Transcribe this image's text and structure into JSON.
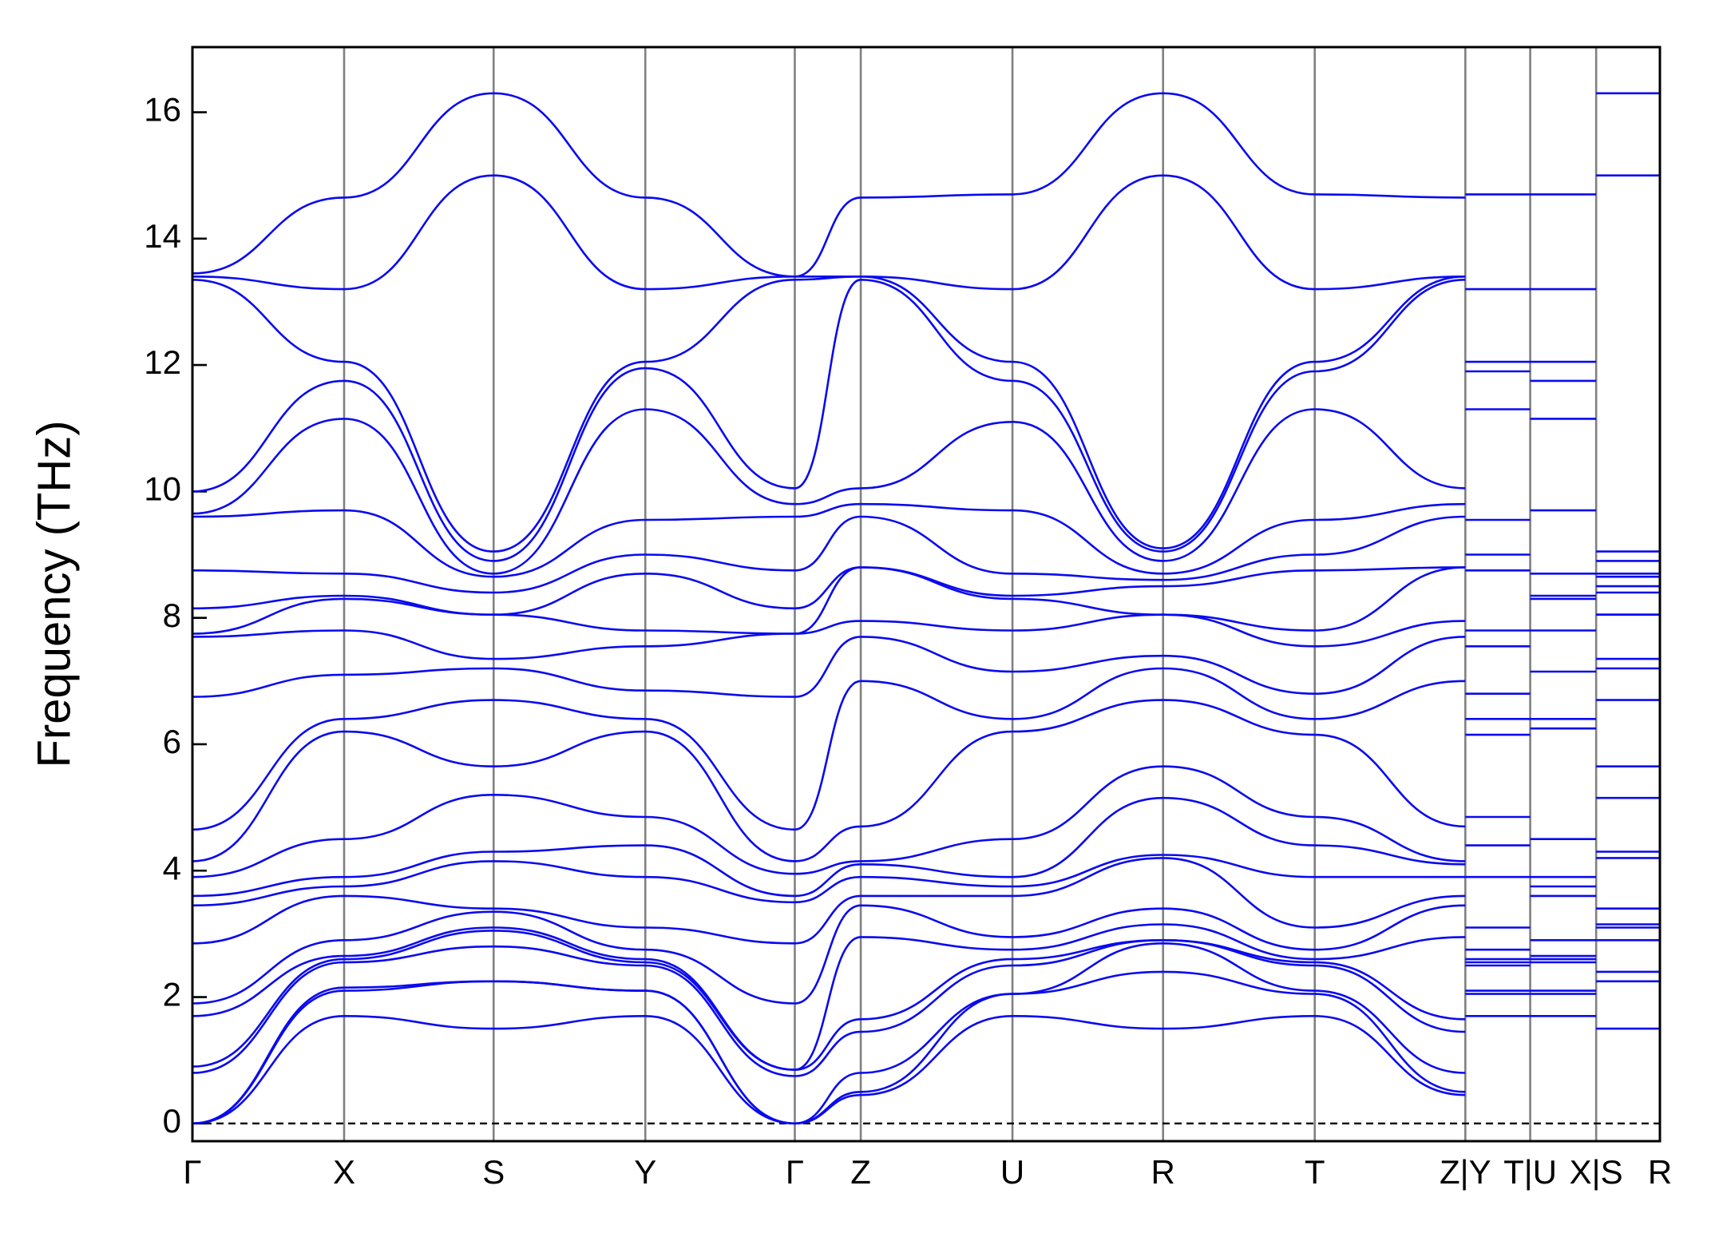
{
  "chart_data": {
    "type": "line",
    "y_label": "Frequency (THz)",
    "color": "#0a0af0",
    "divider_color": "#808080",
    "zero_line": 0,
    "ylim": [
      -0.28,
      17.03
    ],
    "yticks": [
      0,
      2,
      4,
      6,
      8,
      10,
      12,
      14,
      16
    ],
    "xlim": [
      0,
      1335
    ],
    "xticks": [
      {
        "value": 0,
        "label": "Γ"
      },
      {
        "value": 138,
        "label": "X"
      },
      {
        "value": 274,
        "label": "S"
      },
      {
        "value": 412,
        "label": "Y"
      },
      {
        "value": 548,
        "label": "Γ"
      },
      {
        "value": 608,
        "label": "Z"
      },
      {
        "value": 746,
        "label": "U"
      },
      {
        "value": 883,
        "label": "R"
      },
      {
        "value": 1021,
        "label": "T"
      },
      {
        "value": 1158,
        "label": "Z|Y"
      },
      {
        "value": 1217,
        "label": "T|U"
      },
      {
        "value": 1277,
        "label": "X|S"
      },
      {
        "value": 1335,
        "label": "R"
      }
    ],
    "x": [
      0,
      138,
      274,
      412,
      548,
      608,
      746,
      883,
      1021,
      1158,
      1158,
      1158,
      1217,
      1217,
      1217,
      1277,
      1277,
      1277,
      1335
    ],
    "series": [
      {
        "values": [
          0,
          1.7,
          1.5,
          1.7,
          0,
          0.45,
          1.7,
          1.5,
          1.7,
          0.45,
          null,
          1.7,
          1.7,
          null,
          1.7,
          1.7,
          null,
          1.5,
          1.5
        ]
      },
      {
        "values": [
          0,
          2.1,
          2.25,
          2.1,
          0,
          0.5,
          2.05,
          2.4,
          2.05,
          0.5,
          null,
          2.05,
          2.05,
          null,
          2.05,
          2.05,
          null,
          2.25,
          2.25
        ]
      },
      {
        "values": [
          0,
          2.15,
          2.25,
          2.1,
          0,
          0.8,
          2.05,
          2.85,
          2.1,
          0.8,
          null,
          2.1,
          2.1,
          null,
          2.1,
          2.1,
          null,
          2.4,
          2.4
        ]
      },
      {
        "values": [
          0.8,
          2.55,
          2.8,
          2.5,
          0.75,
          1.45,
          2.5,
          2.9,
          2.5,
          1.45,
          null,
          2.5,
          2.5,
          null,
          2.55,
          2.55,
          null,
          2.9,
          2.9
        ]
      },
      {
        "values": [
          0.9,
          2.6,
          3.05,
          2.55,
          0.85,
          1.65,
          2.6,
          2.9,
          2.55,
          1.65,
          null,
          2.55,
          2.55,
          null,
          2.6,
          2.6,
          null,
          3.1,
          3.1
        ]
      },
      {
        "values": [
          1.7,
          2.65,
          3.1,
          2.6,
          0.85,
          2.95,
          2.75,
          3.15,
          2.6,
          2.95,
          null,
          2.6,
          2.6,
          null,
          2.65,
          2.65,
          null,
          3.15,
          3.15
        ]
      },
      {
        "values": [
          1.9,
          2.9,
          3.35,
          2.75,
          1.9,
          3.45,
          2.95,
          3.4,
          2.75,
          3.45,
          null,
          2.75,
          2.75,
          null,
          2.9,
          2.9,
          null,
          3.4,
          3.4
        ]
      },
      {
        "values": [
          2.85,
          3.6,
          3.4,
          3.1,
          2.85,
          3.6,
          3.6,
          4.2,
          3.1,
          3.6,
          null,
          3.1,
          3.1,
          null,
          3.6,
          3.6,
          null,
          4.2,
          4.2
        ]
      },
      {
        "values": [
          3.45,
          3.75,
          4.15,
          3.9,
          3.5,
          3.9,
          3.75,
          4.25,
          3.9,
          3.9,
          null,
          3.9,
          3.9,
          null,
          3.75,
          3.75,
          null,
          4.3,
          4.3
        ]
      },
      {
        "values": [
          3.6,
          3.9,
          4.3,
          4.4,
          3.6,
          4.1,
          3.9,
          5.15,
          4.4,
          4.1,
          null,
          4.4,
          4.4,
          null,
          3.9,
          3.9,
          null,
          5.15,
          5.15
        ]
      },
      {
        "values": [
          3.9,
          4.5,
          5.2,
          4.85,
          3.95,
          4.15,
          4.5,
          5.65,
          4.85,
          4.15,
          null,
          4.85,
          4.85,
          null,
          4.5,
          4.5,
          null,
          5.65,
          5.65
        ]
      },
      {
        "values": [
          4.15,
          6.2,
          5.65,
          6.2,
          4.15,
          4.7,
          6.2,
          6.7,
          6.15,
          4.7,
          null,
          6.15,
          6.15,
          null,
          6.25,
          6.25,
          null,
          6.7,
          6.7
        ]
      },
      {
        "values": [
          4.65,
          6.4,
          6.7,
          6.4,
          4.65,
          7.0,
          6.4,
          7.2,
          6.4,
          7.0,
          null,
          6.4,
          6.4,
          null,
          6.4,
          6.4,
          null,
          7.2,
          7.2
        ]
      },
      {
        "values": [
          6.75,
          7.1,
          7.2,
          6.85,
          6.75,
          7.7,
          7.15,
          7.4,
          6.8,
          7.7,
          null,
          6.8,
          6.8,
          null,
          7.15,
          7.15,
          null,
          7.35,
          7.35
        ]
      },
      {
        "values": [
          7.7,
          7.8,
          7.35,
          7.55,
          7.75,
          7.95,
          7.8,
          8.05,
          7.55,
          7.95,
          null,
          7.55,
          7.55,
          null,
          7.8,
          7.8,
          null,
          8.05,
          8.05
        ]
      },
      {
        "values": [
          7.75,
          8.3,
          8.05,
          7.8,
          7.75,
          8.8,
          8.3,
          8.05,
          7.8,
          8.8,
          null,
          7.8,
          7.8,
          null,
          8.3,
          8.3,
          null,
          8.05,
          8.05
        ]
      },
      {
        "values": [
          8.15,
          8.35,
          8.05,
          8.7,
          8.15,
          8.8,
          8.35,
          8.5,
          8.75,
          8.8,
          null,
          8.75,
          8.75,
          null,
          8.35,
          8.35,
          null,
          8.4,
          8.4
        ]
      },
      {
        "values": [
          8.75,
          8.7,
          8.4,
          9.0,
          8.75,
          9.6,
          8.7,
          8.6,
          9.0,
          9.6,
          null,
          9.0,
          9.0,
          null,
          8.7,
          8.7,
          null,
          8.5,
          8.5
        ]
      },
      {
        "values": [
          9.6,
          9.7,
          8.65,
          9.55,
          9.6,
          9.8,
          9.7,
          8.7,
          9.55,
          9.8,
          null,
          9.55,
          9.55,
          null,
          9.7,
          9.7,
          null,
          8.65,
          8.65
        ]
      },
      {
        "values": [
          9.65,
          11.15,
          8.7,
          11.3,
          9.8,
          10.05,
          11.1,
          8.9,
          11.3,
          10.05,
          null,
          11.3,
          11.3,
          null,
          11.15,
          11.15,
          null,
          8.7,
          8.7
        ]
      },
      {
        "values": [
          10.0,
          11.75,
          8.9,
          11.95,
          10.05,
          13.35,
          11.75,
          9.05,
          11.9,
          13.35,
          null,
          11.9,
          11.9,
          null,
          11.75,
          11.75,
          null,
          8.9,
          8.9
        ]
      },
      {
        "values": [
          13.35,
          12.05,
          9.05,
          12.05,
          13.35,
          13.4,
          12.05,
          9.1,
          12.05,
          13.4,
          null,
          12.05,
          12.05,
          null,
          12.05,
          12.05,
          null,
          9.05,
          9.05
        ]
      },
      {
        "values": [
          13.4,
          13.2,
          15.0,
          13.2,
          13.4,
          13.4,
          13.2,
          15.0,
          13.2,
          13.4,
          null,
          13.2,
          13.2,
          null,
          13.2,
          13.2,
          null,
          15.0,
          15.0
        ]
      },
      {
        "values": [
          13.45,
          14.65,
          16.3,
          14.65,
          13.4,
          14.65,
          14.7,
          16.3,
          14.7,
          14.65,
          null,
          14.7,
          14.7,
          null,
          14.7,
          14.7,
          null,
          16.3,
          16.3
        ]
      }
    ]
  }
}
